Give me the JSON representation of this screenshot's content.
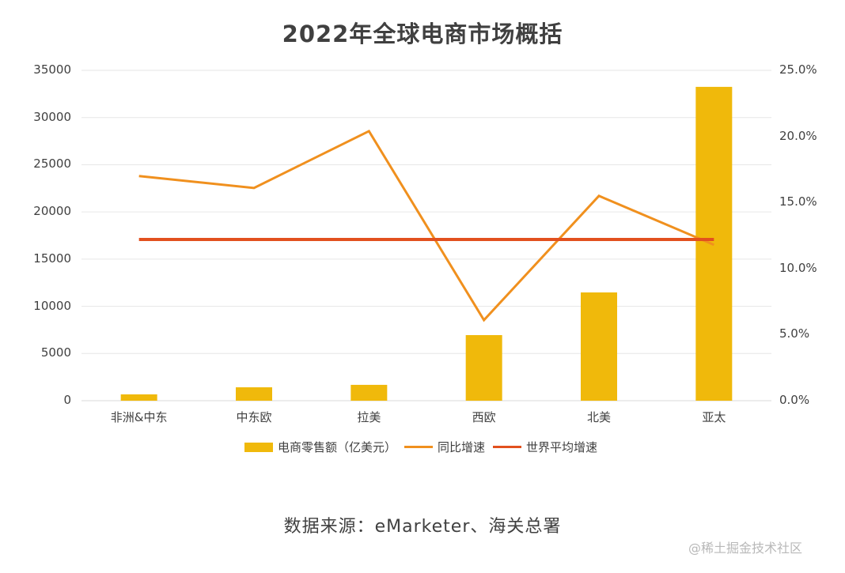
{
  "title": "2022年全球电商市场概括",
  "source": "数据来源：eMarketer、海关总署",
  "watermark": "@稀土掘金技术社区",
  "colors": {
    "bar": "#F0B90B",
    "yoy_line": "#F0901E",
    "world_line": "#E2501E",
    "grid": "#E6E6E6",
    "text": "#404040"
  },
  "left_axis": {
    "ticks": [
      "35000",
      "30000",
      "25000",
      "20000",
      "15000",
      "10000",
      "5000",
      "0"
    ]
  },
  "right_axis": {
    "ticks": [
      "25.0%",
      "20.0%",
      "15.0%",
      "10.0%",
      "5.0%",
      "0.0%"
    ]
  },
  "legend": [
    {
      "label": "电商零售额（亿美元）",
      "type": "bar"
    },
    {
      "label": "同比增速",
      "type": "line"
    },
    {
      "label": "世界平均增速",
      "type": "line"
    }
  ],
  "chart_data": {
    "type": "bar+line",
    "title": "2022年全球电商市场概括",
    "categories": [
      "非洲&中东",
      "中东欧",
      "拉美",
      "西欧",
      "北美",
      "亚太"
    ],
    "series": [
      {
        "name": "电商零售额（亿美元）",
        "type": "bar",
        "axis": "left",
        "values": [
          670,
          1420,
          1680,
          6950,
          11470,
          33250
        ]
      },
      {
        "name": "同比增速",
        "type": "line",
        "axis": "right",
        "values": [
          0.17,
          0.161,
          0.204,
          0.061,
          0.155,
          0.118
        ]
      },
      {
        "name": "世界平均增速",
        "type": "line",
        "axis": "right",
        "values": [
          0.122,
          0.122,
          0.122,
          0.122,
          0.122,
          0.122
        ]
      }
    ],
    "xlabel": "",
    "ylabel_left": "",
    "ylabel_right": "",
    "ylim_left": [
      0,
      35000
    ],
    "ylim_right": [
      0,
      0.25
    ],
    "grid": true,
    "legend_position": "bottom",
    "annotation": "数据来源：eMarketer、海关总署"
  }
}
